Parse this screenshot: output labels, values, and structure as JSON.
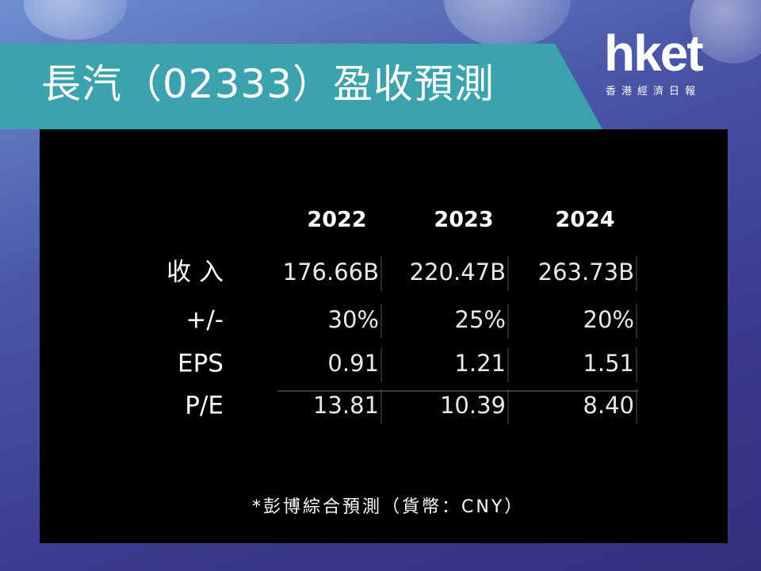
{
  "header": {
    "title": "長汽（02333）盈收預測",
    "logo": "hket",
    "logo_subtitle": "香港經濟日報"
  },
  "table": {
    "columns": [
      "2022",
      "2023",
      "2024"
    ],
    "rows": [
      {
        "label": "收 入",
        "cells": [
          "176.66B",
          "220.47B",
          "263.73B"
        ]
      },
      {
        "label": "+/-",
        "cells": [
          "30%",
          "25%",
          "20%"
        ]
      },
      {
        "label": "EPS",
        "cells": [
          "0.91",
          "1.21",
          "1.51"
        ]
      },
      {
        "label": "P/E",
        "cells": [
          "13.81",
          "10.39",
          "8.40"
        ]
      }
    ]
  },
  "footnote": "*彭博綜合預測（貨幣：CNY）"
}
